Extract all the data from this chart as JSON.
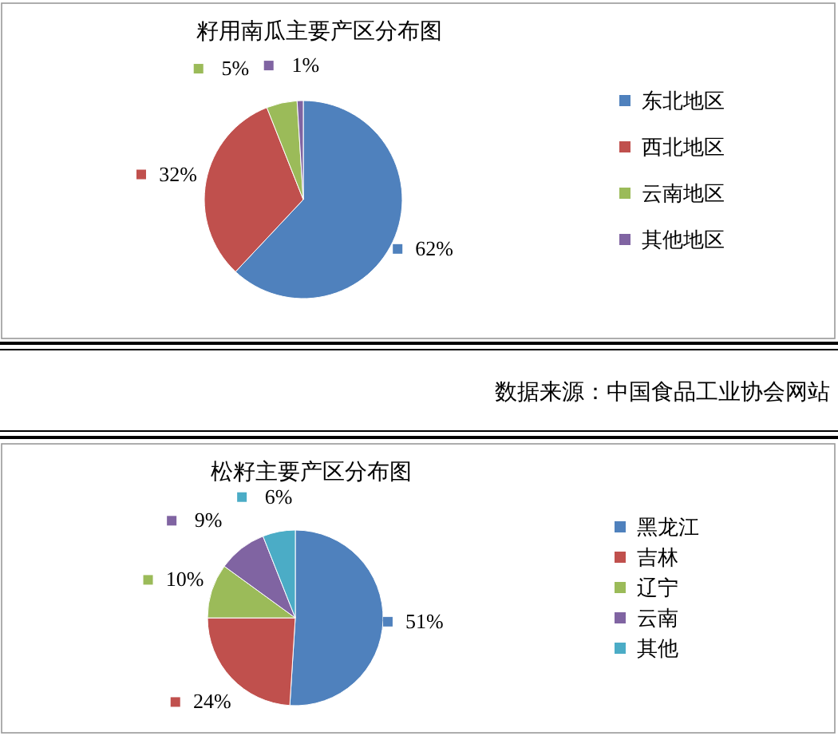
{
  "chart_data": [
    {
      "type": "pie",
      "title": "籽用南瓜主要产区分布图",
      "categories": [
        "东北地区",
        "西北地区",
        "云南地区",
        "其他地区"
      ],
      "values": [
        62,
        32,
        5,
        1
      ],
      "value_labels": [
        "62%",
        "32%",
        "5%",
        "1%"
      ],
      "colors": [
        "#4f81bd",
        "#c0504d",
        "#9bbb59",
        "#8064a2"
      ],
      "legend": "right",
      "annotations": [
        "数据来源：中国食品工业协会网站"
      ]
    },
    {
      "type": "pie",
      "title": "松籽主要产区分布图",
      "categories": [
        "黑龙江",
        "吉林",
        "辽宁",
        "云南",
        "其他"
      ],
      "values": [
        51,
        24,
        10,
        9,
        6
      ],
      "value_labels": [
        "51%",
        "24%",
        "10%",
        "9%",
        "6%"
      ],
      "colors": [
        "#4f81bd",
        "#c0504d",
        "#9bbb59",
        "#8064a2",
        "#4bacc6"
      ],
      "legend": "right"
    }
  ]
}
